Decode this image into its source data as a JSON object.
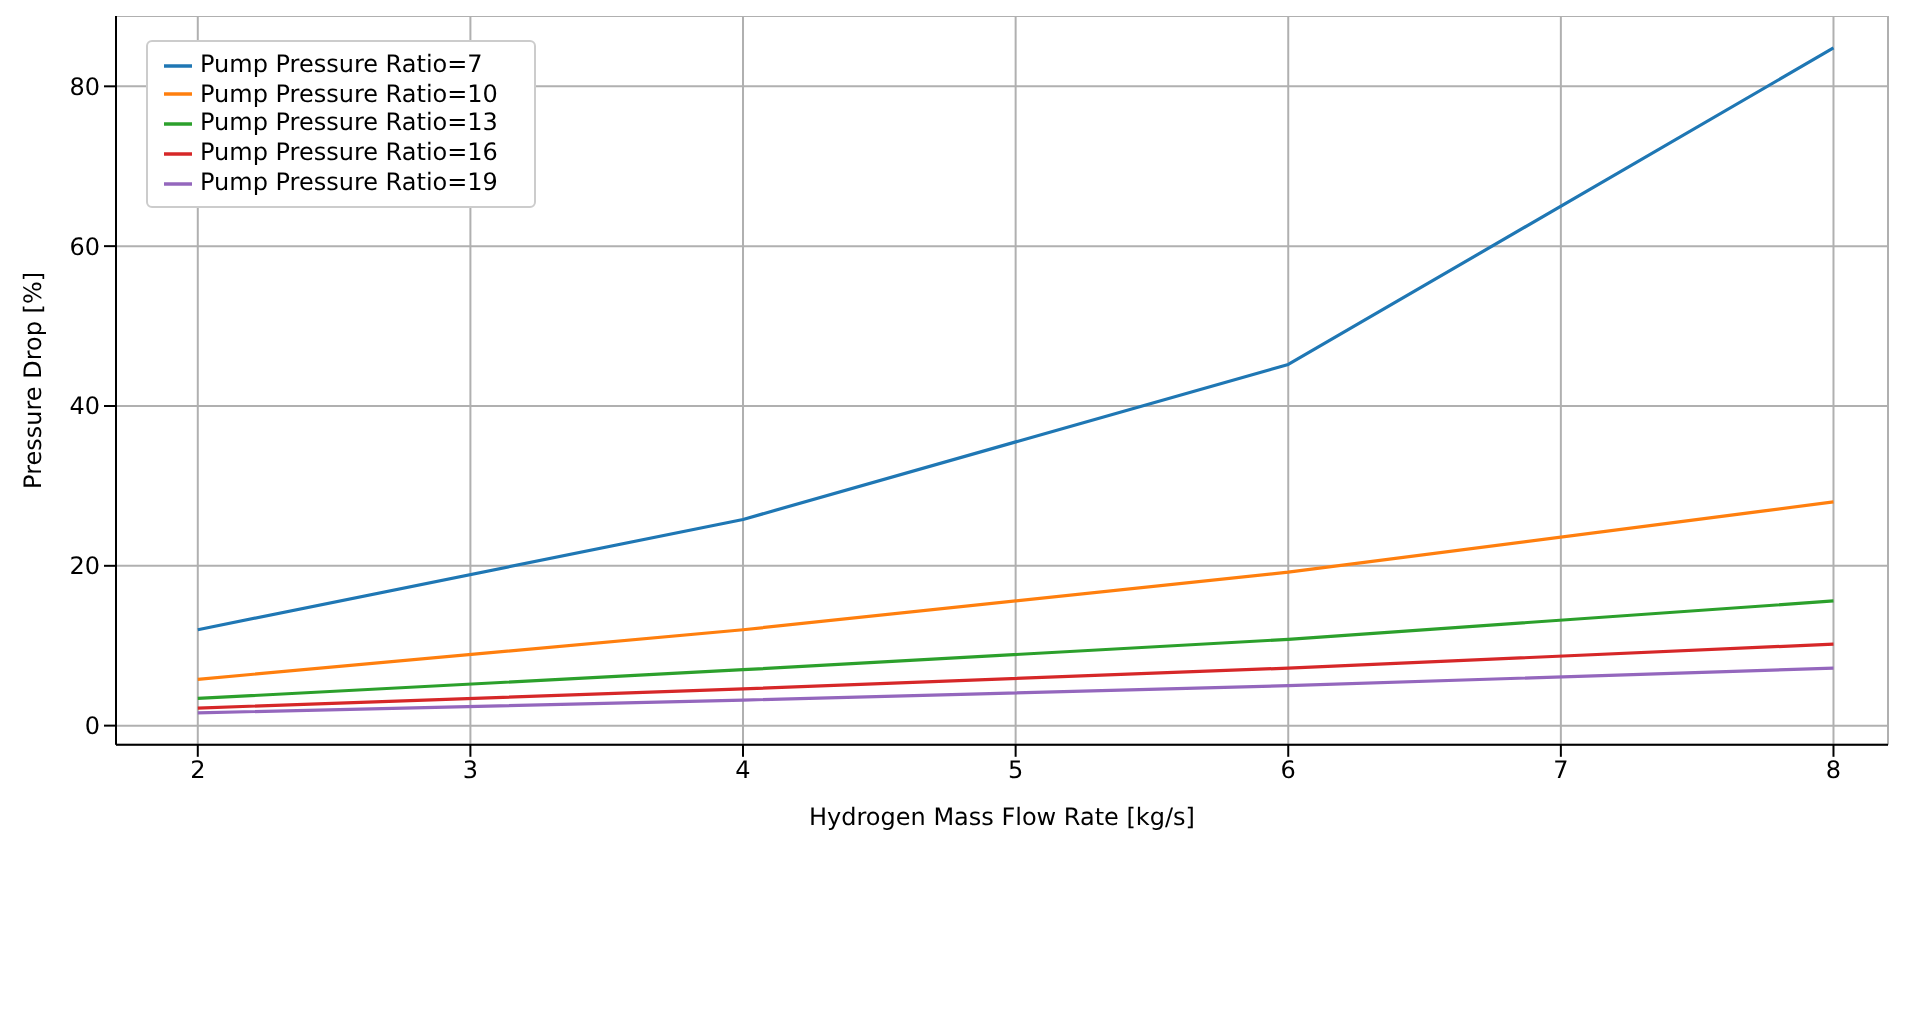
{
  "chart_data": {
    "type": "line",
    "xlabel": "Hydrogen Mass Flow Rate [kg/s]",
    "ylabel": "Pressure Drop [%]",
    "x": [
      2,
      4,
      6,
      8
    ],
    "series": [
      {
        "name": "Pump Pressure Ratio=7",
        "color": "#1f77b4",
        "values": [
          12,
          25.8,
          45.2,
          84.8
        ]
      },
      {
        "name": "Pump Pressure Ratio=10",
        "color": "#ff7f0e",
        "values": [
          5.8,
          12,
          19.2,
          28
        ]
      },
      {
        "name": "Pump Pressure Ratio=13",
        "color": "#2ca02c",
        "values": [
          3.4,
          7,
          10.8,
          15.6
        ]
      },
      {
        "name": "Pump Pressure Ratio=16",
        "color": "#d62728",
        "values": [
          2.2,
          4.6,
          7.2,
          10.2
        ]
      },
      {
        "name": "Pump Pressure Ratio=19",
        "color": "#9467bd",
        "values": [
          1.6,
          3.2,
          5,
          7.2
        ]
      }
    ],
    "xlim": [
      1.7,
      8.2
    ],
    "xticks": [
      2,
      3,
      4,
      5,
      6,
      7,
      8
    ],
    "ylim": [
      -2.4,
      88.8
    ],
    "yticks": [
      0,
      20,
      40,
      60,
      80
    ],
    "grid": true,
    "legend": "top left",
    "marker": "none",
    "line_style": "solid"
  }
}
